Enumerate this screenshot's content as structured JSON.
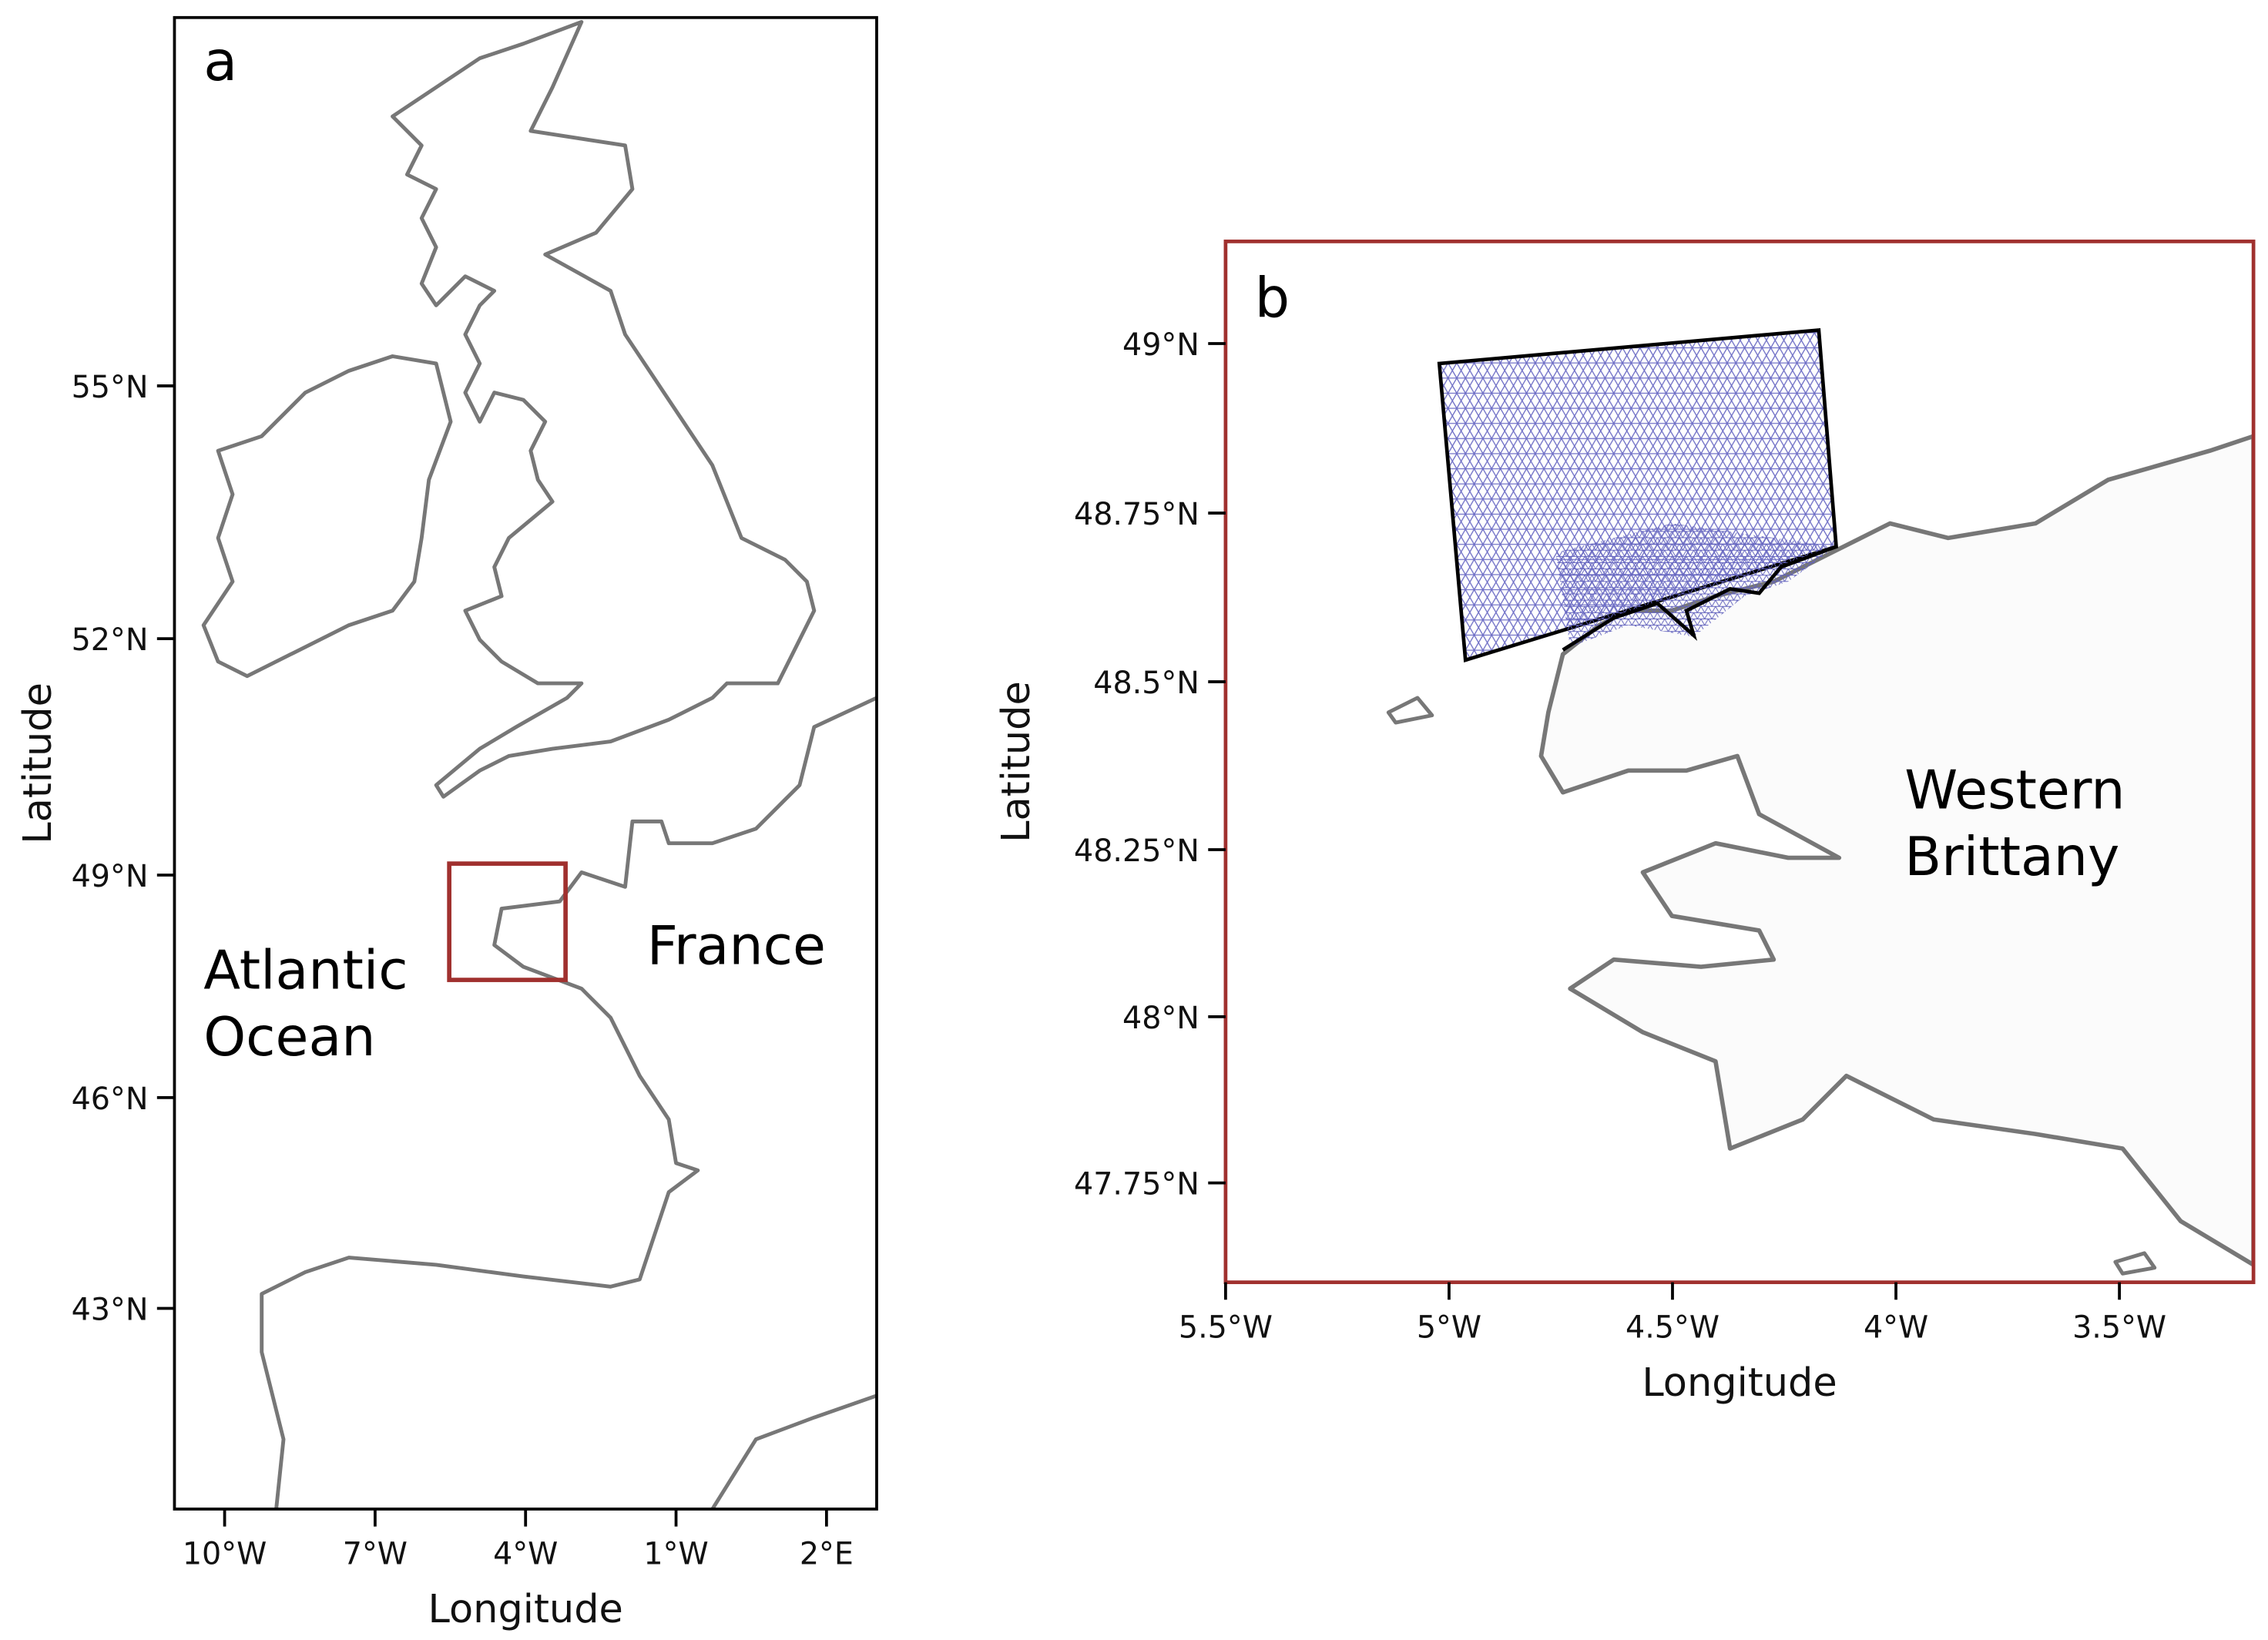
{
  "panels": [
    {
      "label": "a",
      "projection": "mercator",
      "xlim": [
        -11,
        3
      ],
      "ylim": [
        40,
        59
      ],
      "xticks": [
        {
          "value": -10,
          "label": "10°W"
        },
        {
          "value": -7,
          "label": "7°W"
        },
        {
          "value": -4,
          "label": "4°W"
        },
        {
          "value": -1,
          "label": "1°W"
        },
        {
          "value": 2,
          "label": "2°E"
        }
      ],
      "yticks": [
        {
          "value": 55,
          "label": "55°N"
        },
        {
          "value": 52,
          "label": "52°N"
        },
        {
          "value": 49,
          "label": "49°N"
        },
        {
          "value": 46,
          "label": "46°N"
        },
        {
          "value": 43,
          "label": "43°N"
        }
      ],
      "xlabel": "Longitude",
      "ylabel": "Latitude",
      "annotations": [
        {
          "lines": [
            "Atlantic",
            "Ocean"
          ]
        },
        {
          "lines": [
            "France"
          ]
        }
      ]
    },
    {
      "label": "b",
      "projection": "mercator",
      "xlim": [
        -5.5,
        -3.2
      ],
      "ylim": [
        47.6,
        49.15
      ],
      "xticks": [
        {
          "value": -5.5,
          "label": "5.5°W"
        },
        {
          "value": -5,
          "label": "5°W"
        },
        {
          "value": -4.5,
          "label": "4.5°W"
        },
        {
          "value": -4,
          "label": "4°W"
        },
        {
          "value": -3.5,
          "label": "3.5°W"
        }
      ],
      "yticks": [
        {
          "value": 49,
          "label": "49°N"
        },
        {
          "value": 48.75,
          "label": "48.75°N"
        },
        {
          "value": 48.5,
          "label": "48.5°N"
        },
        {
          "value": 48.25,
          "label": "48.25°N"
        },
        {
          "value": 48,
          "label": "48°N"
        },
        {
          "value": 47.75,
          "label": "47.75°N"
        }
      ],
      "xlabel": "Longitude",
      "ylabel": "Latitude",
      "annotations": [
        {
          "lines": [
            "Western",
            "Brittany"
          ]
        }
      ]
    }
  ]
}
